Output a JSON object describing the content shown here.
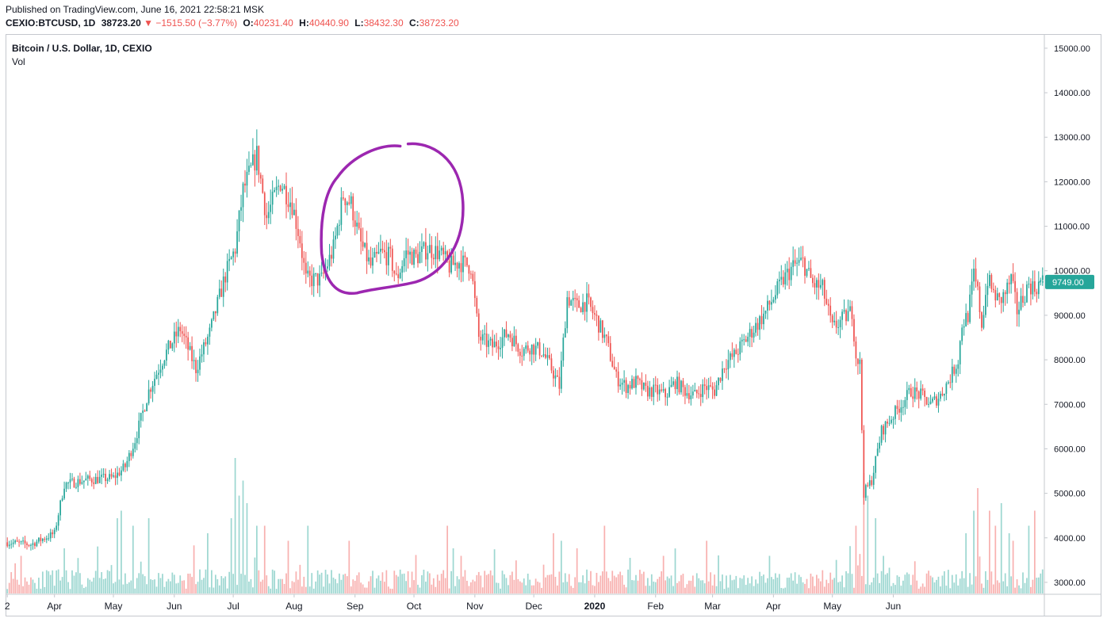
{
  "published": "Published on TradingView.com, June 16, 2021 22:58:21 MSK",
  "ohlc": {
    "symbol": "CEXIO:BTCUSD, 1D",
    "price": "38723.20",
    "arrow": "▼",
    "change": "−1515.50 (−3.77%)",
    "o_label": "O:",
    "o": "40231.40",
    "h_label": "H:",
    "h": "40440.90",
    "l_label": "L:",
    "l": "38432.30",
    "c_label": "C:",
    "c": "38723.20"
  },
  "legend": {
    "title": "Bitcoin / U.S. Dollar, 1D, CEXIO",
    "volume": "Vol"
  },
  "last_price_label": "9749.00",
  "colors": {
    "up": "#26a69a",
    "down": "#ef5350",
    "annotation": "#9c27b0",
    "price_tag": "#26a69a"
  },
  "chart_data": {
    "type": "candlestick",
    "ylim": [
      2750,
      15300
    ],
    "y_ticks": [
      "15000.00",
      "14000.00",
      "13000.00",
      "12000.00",
      "11000.00",
      "10000.00",
      "9000.00",
      "8000.00",
      "7000.00",
      "6000.00",
      "5000.00",
      "4000.00",
      "3000.00"
    ],
    "x_ticks": [
      "2",
      "Apr",
      "May",
      "Jun",
      "Jul",
      "Aug",
      "Sep",
      "Oct",
      "Nov",
      "Dec",
      "2020",
      "Feb",
      "Mar",
      "Apr",
      "May",
      "Jun"
    ],
    "x_tick_index": [
      0,
      24,
      54,
      85,
      115,
      146,
      177,
      207,
      238,
      268,
      299,
      330,
      359,
      390,
      420,
      451
    ],
    "close_path": [
      [
        0,
        3900
      ],
      [
        12,
        3850
      ],
      [
        24,
        4100
      ],
      [
        29,
        5200
      ],
      [
        40,
        5300
      ],
      [
        54,
        5350
      ],
      [
        60,
        5600
      ],
      [
        65,
        6200
      ],
      [
        72,
        7300
      ],
      [
        80,
        8100
      ],
      [
        88,
        8700
      ],
      [
        96,
        7800
      ],
      [
        103,
        8600
      ],
      [
        111,
        9900
      ],
      [
        116,
        10500
      ],
      [
        120,
        11800
      ],
      [
        127,
        12600
      ],
      [
        132,
        11200
      ],
      [
        139,
        12000
      ],
      [
        145,
        11500
      ],
      [
        149,
        10700
      ],
      [
        152,
        9800
      ],
      [
        160,
        9800
      ],
      [
        166,
        10500
      ],
      [
        171,
        11700
      ],
      [
        175,
        11500
      ],
      [
        180,
        10600
      ],
      [
        185,
        10100
      ],
      [
        190,
        10400
      ],
      [
        195,
        10300
      ],
      [
        198,
        9800
      ],
      [
        203,
        10400
      ],
      [
        208,
        10300
      ],
      [
        214,
        10500
      ],
      [
        220,
        10400
      ],
      [
        225,
        10100
      ],
      [
        230,
        10200
      ],
      [
        236,
        10100
      ],
      [
        240,
        8500
      ],
      [
        247,
        8300
      ],
      [
        255,
        8600
      ],
      [
        262,
        8200
      ],
      [
        266,
        8300
      ],
      [
        272,
        8200
      ],
      [
        277,
        7800
      ],
      [
        281,
        7400
      ],
      [
        285,
        9400
      ],
      [
        290,
        9200
      ],
      [
        295,
        9300
      ],
      [
        300,
        8900
      ],
      [
        305,
        8400
      ],
      [
        310,
        7600
      ],
      [
        315,
        7400
      ],
      [
        320,
        7500
      ],
      [
        325,
        7300
      ],
      [
        330,
        7300
      ],
      [
        335,
        7200
      ],
      [
        340,
        7500
      ],
      [
        345,
        7300
      ],
      [
        350,
        7200
      ],
      [
        355,
        7400
      ],
      [
        360,
        7300
      ],
      [
        365,
        7900
      ],
      [
        370,
        8100
      ],
      [
        375,
        8400
      ],
      [
        380,
        8700
      ],
      [
        385,
        9000
      ],
      [
        390,
        9400
      ],
      [
        395,
        9800
      ],
      [
        400,
        10100
      ],
      [
        405,
        10200
      ],
      [
        410,
        9700
      ],
      [
        415,
        9600
      ],
      [
        420,
        8700
      ],
      [
        425,
        8900
      ],
      [
        430,
        9100
      ],
      [
        432,
        8100
      ],
      [
        434,
        7900
      ],
      [
        436,
        5000
      ],
      [
        440,
        5300
      ],
      [
        445,
        6400
      ],
      [
        450,
        6700
      ],
      [
        455,
        7000
      ],
      [
        460,
        7300
      ],
      [
        465,
        7200
      ],
      [
        470,
        7000
      ],
      [
        475,
        7200
      ],
      [
        480,
        7600
      ],
      [
        484,
        8000
      ],
      [
        486,
        8800
      ],
      [
        489,
        9000
      ],
      [
        492,
        9900
      ],
      [
        494,
        9500
      ],
      [
        496,
        8800
      ],
      [
        499,
        9800
      ],
      [
        502,
        9500
      ],
      [
        505,
        9300
      ],
      [
        508,
        9500
      ],
      [
        511,
        9800
      ],
      [
        514,
        9100
      ],
      [
        517,
        9400
      ],
      [
        520,
        9700
      ],
      [
        523,
        9600
      ],
      [
        526,
        9749
      ]
    ],
    "volume_spikes": [
      [
        4,
        4
      ],
      [
        7,
        5
      ],
      [
        29,
        6
      ],
      [
        56,
        10
      ],
      [
        58,
        11
      ],
      [
        64,
        9
      ],
      [
        72,
        10
      ],
      [
        102,
        8
      ],
      [
        114,
        10
      ],
      [
        116,
        18
      ],
      [
        118,
        13
      ],
      [
        120,
        15
      ],
      [
        122,
        12
      ],
      [
        127,
        9
      ],
      [
        131,
        9
      ],
      [
        143,
        7
      ],
      [
        153,
        9
      ],
      [
        174,
        7
      ],
      [
        224,
        9
      ],
      [
        227,
        6
      ],
      [
        231,
        5
      ],
      [
        278,
        8
      ],
      [
        282,
        7
      ],
      [
        290,
        6
      ],
      [
        304,
        9
      ],
      [
        334,
        5
      ],
      [
        356,
        7
      ],
      [
        388,
        5
      ],
      [
        432,
        9
      ],
      [
        436,
        16
      ],
      [
        438,
        13
      ],
      [
        442,
        10
      ],
      [
        488,
        8
      ],
      [
        492,
        11
      ],
      [
        494,
        14
      ],
      [
        500,
        11
      ],
      [
        503,
        9
      ],
      [
        506,
        12
      ],
      [
        510,
        8
      ],
      [
        512,
        7
      ],
      [
        520,
        9
      ],
      [
        523,
        11
      ]
    ]
  }
}
